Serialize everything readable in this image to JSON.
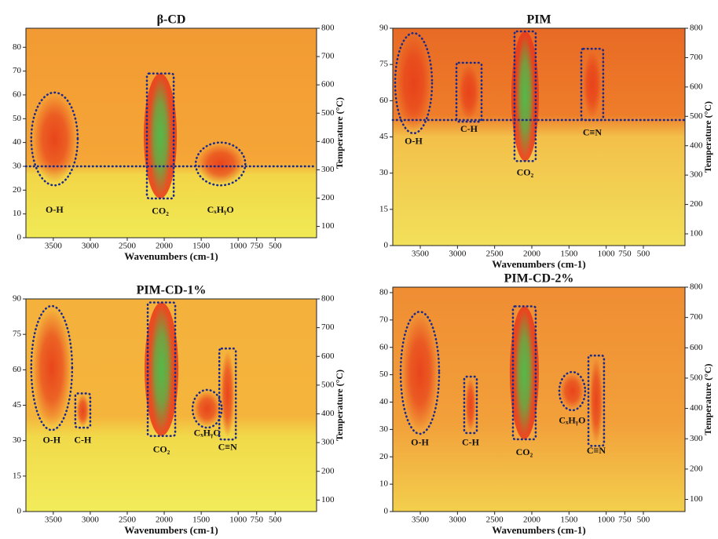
{
  "chart_data": [
    {
      "type": "heatmap",
      "title": "β-CD",
      "xlabel": "Wavenumbers (cm-1)",
      "y2label": "Temperature (°C)",
      "xlim": [
        3870,
        -60
      ],
      "xticks": [
        3500,
        3000,
        2500,
        2000,
        1500,
        1000,
        750,
        500
      ],
      "ylim": [
        0,
        88
      ],
      "yticks": [
        0,
        10,
        20,
        30,
        40,
        50,
        60,
        70,
        80
      ],
      "y2lim": [
        60,
        800
      ],
      "y2ticks": [
        100,
        200,
        300,
        400,
        500,
        600,
        700,
        800
      ],
      "hline": 30,
      "annotations": [
        {
          "label": "O-H",
          "shape": "ellipse",
          "region": [
            3798,
            3170,
            22,
            61
          ],
          "label_y": 11.5,
          "fill": "#e8401a"
        },
        {
          "label": "CO₂",
          "shape": "rect",
          "region": [
            2234,
            1872,
            16.5,
            69
          ],
          "label_y": 11,
          "fill": "#4cc04c"
        },
        {
          "label": "CₓHᵧO",
          "shape": "ellipse",
          "region": [
            1574,
            904,
            22,
            40
          ],
          "label_y": 11.5,
          "fill": "#e8401a"
        }
      ]
    },
    {
      "type": "heatmap",
      "title": "PIM",
      "xlabel": "Wavenumbers (cm-1)",
      "y2label": "Temperature (°C)",
      "xlim": [
        3870,
        -60
      ],
      "xticks": [
        3500,
        3000,
        2500,
        2000,
        1500,
        1000,
        750,
        500
      ],
      "ylim": [
        0,
        90
      ],
      "yticks": [
        0,
        15,
        30,
        45,
        60,
        75,
        90
      ],
      "y2lim": [
        60,
        800
      ],
      "y2ticks": [
        100,
        200,
        300,
        400,
        500,
        600,
        700,
        800
      ],
      "hline": 52,
      "annotations": [
        {
          "label": "O-H",
          "shape": "ellipse",
          "region": [
            3838,
            3342,
            46.5,
            88
          ],
          "label_y": 43,
          "fill": "#e8401a"
        },
        {
          "label": "C-H",
          "shape": "rect",
          "region": [
            3014,
            2676,
            51.3,
            75.7
          ],
          "label_y": 48,
          "fill": "#e8401a"
        },
        {
          "label": "CO₂",
          "shape": "rect",
          "region": [
            2233,
            1948,
            35,
            88.7
          ],
          "label_y": 30,
          "fill": "#4cc04c"
        },
        {
          "label": "C≡N",
          "shape": "rect",
          "region": [
            1335,
            1040,
            52,
            81.5
          ],
          "label_y": 46.5,
          "fill": "#e8401a"
        }
      ]
    },
    {
      "type": "heatmap",
      "title": "PIM-CD-1%",
      "xlabel": "Wavenumbers (cm-1)",
      "y2label": "Temperature (°C)",
      "xlim": [
        3870,
        -60
      ],
      "xticks": [
        3500,
        3000,
        2500,
        2000,
        1500,
        1000,
        750,
        500
      ],
      "ylim": [
        0,
        90
      ],
      "yticks": [
        0,
        15,
        30,
        45,
        60,
        75,
        90
      ],
      "y2lim": [
        60,
        800
      ],
      "y2ticks": [
        100,
        200,
        300,
        400,
        500,
        600,
        700,
        800
      ],
      "annotations": [
        {
          "label": "O-H",
          "shape": "ellipse",
          "region": [
            3798,
            3245,
            34.5,
            87
          ],
          "label_y": 30,
          "fill": "#e8401a"
        },
        {
          "label": "C-H",
          "shape": "rect",
          "region": [
            3202,
            3000,
            35.5,
            50
          ],
          "label_y": 30,
          "fill": "#e8401a"
        },
        {
          "label": "CO₂",
          "shape": "rect",
          "region": [
            2223,
            1851,
            32,
            88.5
          ],
          "label_y": 26,
          "fill": "#4cc04c"
        },
        {
          "label": "CₓHᵧO",
          "shape": "ellipse",
          "region": [
            1617,
            1223,
            35.5,
            51.5
          ],
          "label_y": 33,
          "fill": "#e8401a"
        },
        {
          "label": "C≡N",
          "shape": "rect",
          "region": [
            1255,
            1032,
            30.5,
            69
          ],
          "label_y": 27,
          "fill": "#e8401a"
        }
      ]
    },
    {
      "type": "heatmap",
      "title": "PIM-CD-2%",
      "xlabel": "Wavenumbers (cm-1)",
      "y2label": "Temperature (°C)",
      "xlim": [
        3870,
        -60
      ],
      "xticks": [
        3500,
        3000,
        2500,
        2000,
        1500,
        1000,
        750,
        500
      ],
      "ylim": [
        0,
        82
      ],
      "yticks": [
        0,
        10,
        20,
        30,
        40,
        50,
        60,
        70,
        80
      ],
      "y2lim": [
        60,
        800
      ],
      "y2ticks": [
        100,
        200,
        300,
        400,
        500,
        600,
        700,
        800
      ],
      "annotations": [
        {
          "label": "O-H",
          "shape": "ellipse",
          "region": [
            3764,
            3247,
            28.4,
            73
          ],
          "label_y": 25,
          "fill": "#e8401a"
        },
        {
          "label": "C-H",
          "shape": "rect",
          "region": [
            2909,
            2740,
            28.7,
            49.3
          ],
          "label_y": 25,
          "fill": "#e8401a"
        },
        {
          "label": "CO₂",
          "shape": "rect",
          "region": [
            2254,
            1948,
            26.4,
            75
          ],
          "label_y": 21.5,
          "fill": "#4cc04c"
        },
        {
          "label": "CₓHᵧO",
          "shape": "ellipse",
          "region": [
            1631,
            1283,
            37,
            51
          ],
          "label_y": 33,
          "fill": "#e8401a"
        },
        {
          "label": "C≡N",
          "shape": "rect",
          "region": [
            1239,
            1029,
            24,
            57
          ],
          "label_y": 22,
          "fill": "#e8401a"
        }
      ]
    }
  ]
}
